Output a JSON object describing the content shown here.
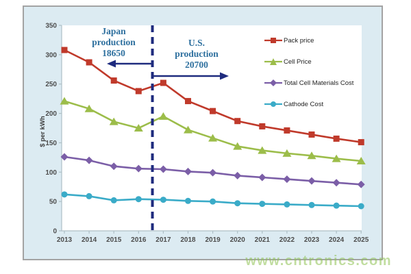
{
  "watermark": {
    "text": "www.cntronics.com"
  },
  "annotations": {
    "japan": {
      "line1": "Japan",
      "line2": "production",
      "line3": "18650",
      "arrow_direction": "left"
    },
    "us": {
      "line1": "U.S.",
      "line2": "production",
      "line3": "20700",
      "arrow_direction": "right"
    }
  },
  "colors": {
    "panel_background": "#dcebf2",
    "panel_border": "#a3a3a3",
    "plot_background": "#ffffff",
    "axis": "#aebfc6",
    "tick_label": "#4d4d4d",
    "annotation_text": "#2d6f9e",
    "divider_and_arrows": "#1e2b7e",
    "watermark_green": "#8fc353"
  },
  "chart_data": {
    "type": "line",
    "title": "",
    "xlabel": "",
    "ylabel": "$ per kWh",
    "ylim": [
      0,
      350
    ],
    "yticks": [
      350,
      300,
      250,
      200,
      150,
      100,
      50,
      0
    ],
    "grid": false,
    "legend_position": "upper right inside plot",
    "categories": [
      "2013",
      "2014",
      "2015",
      "2016",
      "2017",
      "2018",
      "2019",
      "2020",
      "2021",
      "2022",
      "2023",
      "2024",
      "2025"
    ],
    "divider": {
      "x_between": [
        "2016",
        "2017"
      ],
      "fraction": 0.56,
      "style": "dashed vertical navy line"
    },
    "series": [
      {
        "name": "Pack price",
        "color": "#c03a2b",
        "marker": "square",
        "values": [
          308,
          287,
          256,
          238,
          252,
          221,
          204,
          187,
          178,
          171,
          164,
          157,
          151
        ]
      },
      {
        "name": "Cell Price",
        "color": "#9cbd4a",
        "marker": "triangle",
        "values": [
          221,
          208,
          186,
          175,
          195,
          172,
          158,
          144,
          137,
          132,
          128,
          123,
          119
        ]
      },
      {
        "name": "Total Cell Materials Cost",
        "color": "#7b5ea7",
        "marker": "diamond",
        "values": [
          126,
          120,
          110,
          106,
          105,
          101,
          99,
          94,
          91,
          88,
          85,
          82,
          79
        ]
      },
      {
        "name": "Cathode Cost",
        "color": "#3aabc8",
        "marker": "circle",
        "values": [
          62,
          59,
          52,
          54,
          53,
          51,
          50,
          47,
          46,
          45,
          44,
          43,
          42
        ]
      }
    ]
  }
}
